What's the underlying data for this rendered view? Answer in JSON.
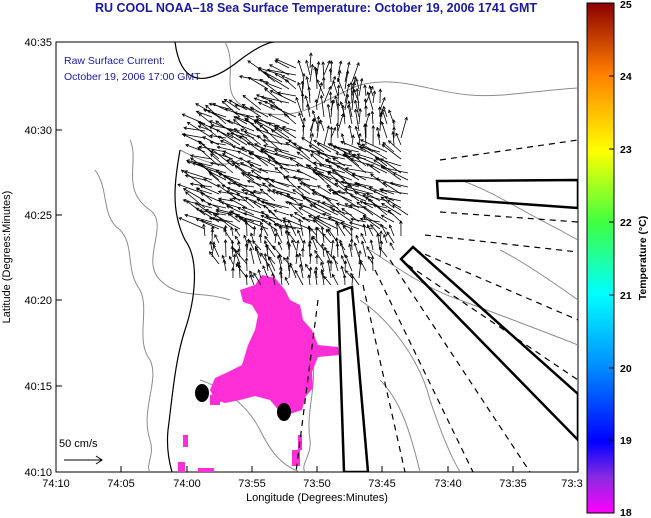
{
  "title": "RU COOL  NOAA–18  Sea Surface Temperature:  October 19, 2006 1741 GMT",
  "annotation_line1": "Raw Surface Current:",
  "annotation_line2": "October 19, 2006 17:00 GMT",
  "scale_label": "50 cm/s",
  "x_axis_label": "Longitude (Degrees:Minutes)",
  "y_axis_label": "Latitude (Degrees:Minutes)",
  "x_ticks": [
    "74:10",
    "74:05",
    "74:00",
    "73:55",
    "73:50",
    "73:45",
    "73:40",
    "73:35",
    "73:3"
  ],
  "y_ticks": [
    "40:35",
    "40:30",
    "40:25",
    "40:20",
    "40:15",
    "40:10"
  ],
  "colorbar": {
    "label": "Temperature (°C)",
    "ticks": [
      "25",
      "24",
      "23",
      "22",
      "21",
      "20",
      "19",
      "18"
    ]
  },
  "colors": {
    "title": "#1a1aa0",
    "sst_patch": "#ff2fd8",
    "contour": "#8c8c8c",
    "vector": "#000000"
  }
}
